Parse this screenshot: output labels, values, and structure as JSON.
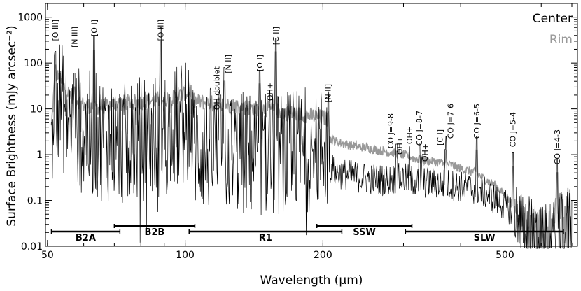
{
  "chart_data": {
    "type": "line",
    "xlabel": "Wavelength (μm)",
    "ylabel": "Surface Brightness (mJy arcsec⁻²)",
    "x_scale": "log",
    "y_scale": "log",
    "xlim": [
      49.5,
      720
    ],
    "ylim": [
      0.01,
      2000
    ],
    "x_ticks": [
      {
        "value": 50,
        "label": "50"
      },
      {
        "value": 100,
        "label": "100"
      },
      {
        "value": 200,
        "label": "200"
      },
      {
        "value": 500,
        "label": "500"
      }
    ],
    "y_ticks": [
      {
        "value": 0.01,
        "label": "0.01"
      },
      {
        "value": 0.1,
        "label": "0.1"
      },
      {
        "value": 1,
        "label": "1"
      },
      {
        "value": 10,
        "label": "10"
      },
      {
        "value": 100,
        "label": "100"
      },
      {
        "value": 1000,
        "label": "1000"
      }
    ],
    "legend": {
      "placement": "top-right"
    },
    "series": [
      {
        "name": "Center",
        "color": "#000000",
        "x": [
          51,
          52,
          55,
          60,
          65,
          70,
          75,
          80,
          85,
          90,
          95,
          100,
          103,
          104,
          110,
          120,
          130,
          140,
          150,
          160,
          170,
          180,
          190,
          200,
          206,
          207,
          215,
          230,
          250,
          270,
          300,
          320,
          350,
          380,
          400,
          430,
          450,
          480,
          520,
          560,
          600,
          640,
          670,
          700
        ],
        "y": [
          2.5,
          30,
          6,
          3,
          2.5,
          2,
          1.8,
          2.2,
          2.5,
          3,
          3.5,
          5,
          6,
          1.5,
          1.3,
          1.2,
          1.1,
          1,
          1.1,
          1,
          1,
          1.3,
          1.4,
          1.5,
          2,
          0.5,
          0.4,
          0.35,
          0.3,
          0.28,
          0.3,
          0.25,
          0.24,
          0.22,
          0.2,
          0.18,
          0.15,
          0.1,
          0.06,
          0.03,
          0.015,
          0.02,
          0.03,
          0.04
        ]
      },
      {
        "name": "Rim",
        "color": "#999999",
        "x": [
          51,
          52,
          55,
          60,
          65,
          70,
          75,
          80,
          85,
          90,
          95,
          100,
          103,
          104,
          110,
          120,
          130,
          140,
          150,
          160,
          170,
          180,
          190,
          200,
          206,
          207,
          215,
          230,
          250,
          270,
          300,
          320,
          350,
          380,
          400,
          430,
          450,
          480,
          520,
          560,
          600,
          640,
          670,
          700
        ],
        "y": [
          4,
          60,
          25,
          12,
          11,
          13,
          14,
          14,
          15,
          16,
          18,
          22,
          25,
          15,
          14,
          12.5,
          11.5,
          10.5,
          10,
          9,
          8,
          7.5,
          7,
          6.5,
          6,
          2.2,
          1.9,
          1.6,
          1.4,
          1.2,
          1,
          0.8,
          0.7,
          0.6,
          0.5,
          0.4,
          0.3,
          0.2,
          0.08,
          0.04,
          0.03,
          0.05,
          0.08,
          0.1
        ]
      }
    ],
    "lines": [
      {
        "label": "[O III]",
        "x": 52,
        "peak": 180
      },
      {
        "label": "[N III]",
        "x": 57.3,
        "peak": 60
      },
      {
        "label": "[O I]",
        "x": 63.2,
        "peak": 380
      },
      {
        "label": "[O III]",
        "x": 88.4,
        "peak": 600
      },
      {
        "label": "OH doublet",
        "x": 119.3,
        "peak": 20
      },
      {
        "label": "[N II]",
        "x": 121.9,
        "peak": 80
      },
      {
        "label": "[O I]",
        "x": 145.5,
        "peak": 70
      },
      {
        "label": "OH+",
        "x": 153,
        "peak": 25
      },
      {
        "label": "[C II]",
        "x": 157.7,
        "peak": 350
      },
      {
        "label": "[N II]",
        "x": 205.2,
        "peak": 15
      },
      {
        "label": "CO J=9-8",
        "x": 289,
        "peak": 1.7
      },
      {
        "label": "OH+",
        "x": 290.2,
        "peak": 1.7
      },
      {
        "label": "OH+",
        "x": 309,
        "peak": 1.5
      },
      {
        "label": "CO J=8-7",
        "x": 325,
        "peak": 1.8
      },
      {
        "label": "OH+",
        "x": 329.5,
        "peak": 0.9
      },
      {
        "label": "[C I]",
        "x": 370.4,
        "peak": 1.3
      },
      {
        "label": "CO J=7-6",
        "x": 371.7,
        "peak": 2.5
      },
      {
        "label": "CO J=6-5",
        "x": 433.6,
        "peak": 2.5
      },
      {
        "label": "CO J=5-4",
        "x": 520.2,
        "peak": 1.1
      },
      {
        "label": "CO J=4-3",
        "x": 650.3,
        "peak": 0.8
      }
    ],
    "bands": [
      {
        "label": "B2A",
        "xmin": 51,
        "xmax": 72
      },
      {
        "label": "B2B",
        "xmin": 70,
        "xmax": 105
      },
      {
        "label": "R1",
        "xmin": 102,
        "xmax": 220
      },
      {
        "label": "SSW",
        "xmin": 194,
        "xmax": 313
      },
      {
        "label": "SLW",
        "xmin": 303,
        "xmax": 671
      }
    ]
  }
}
